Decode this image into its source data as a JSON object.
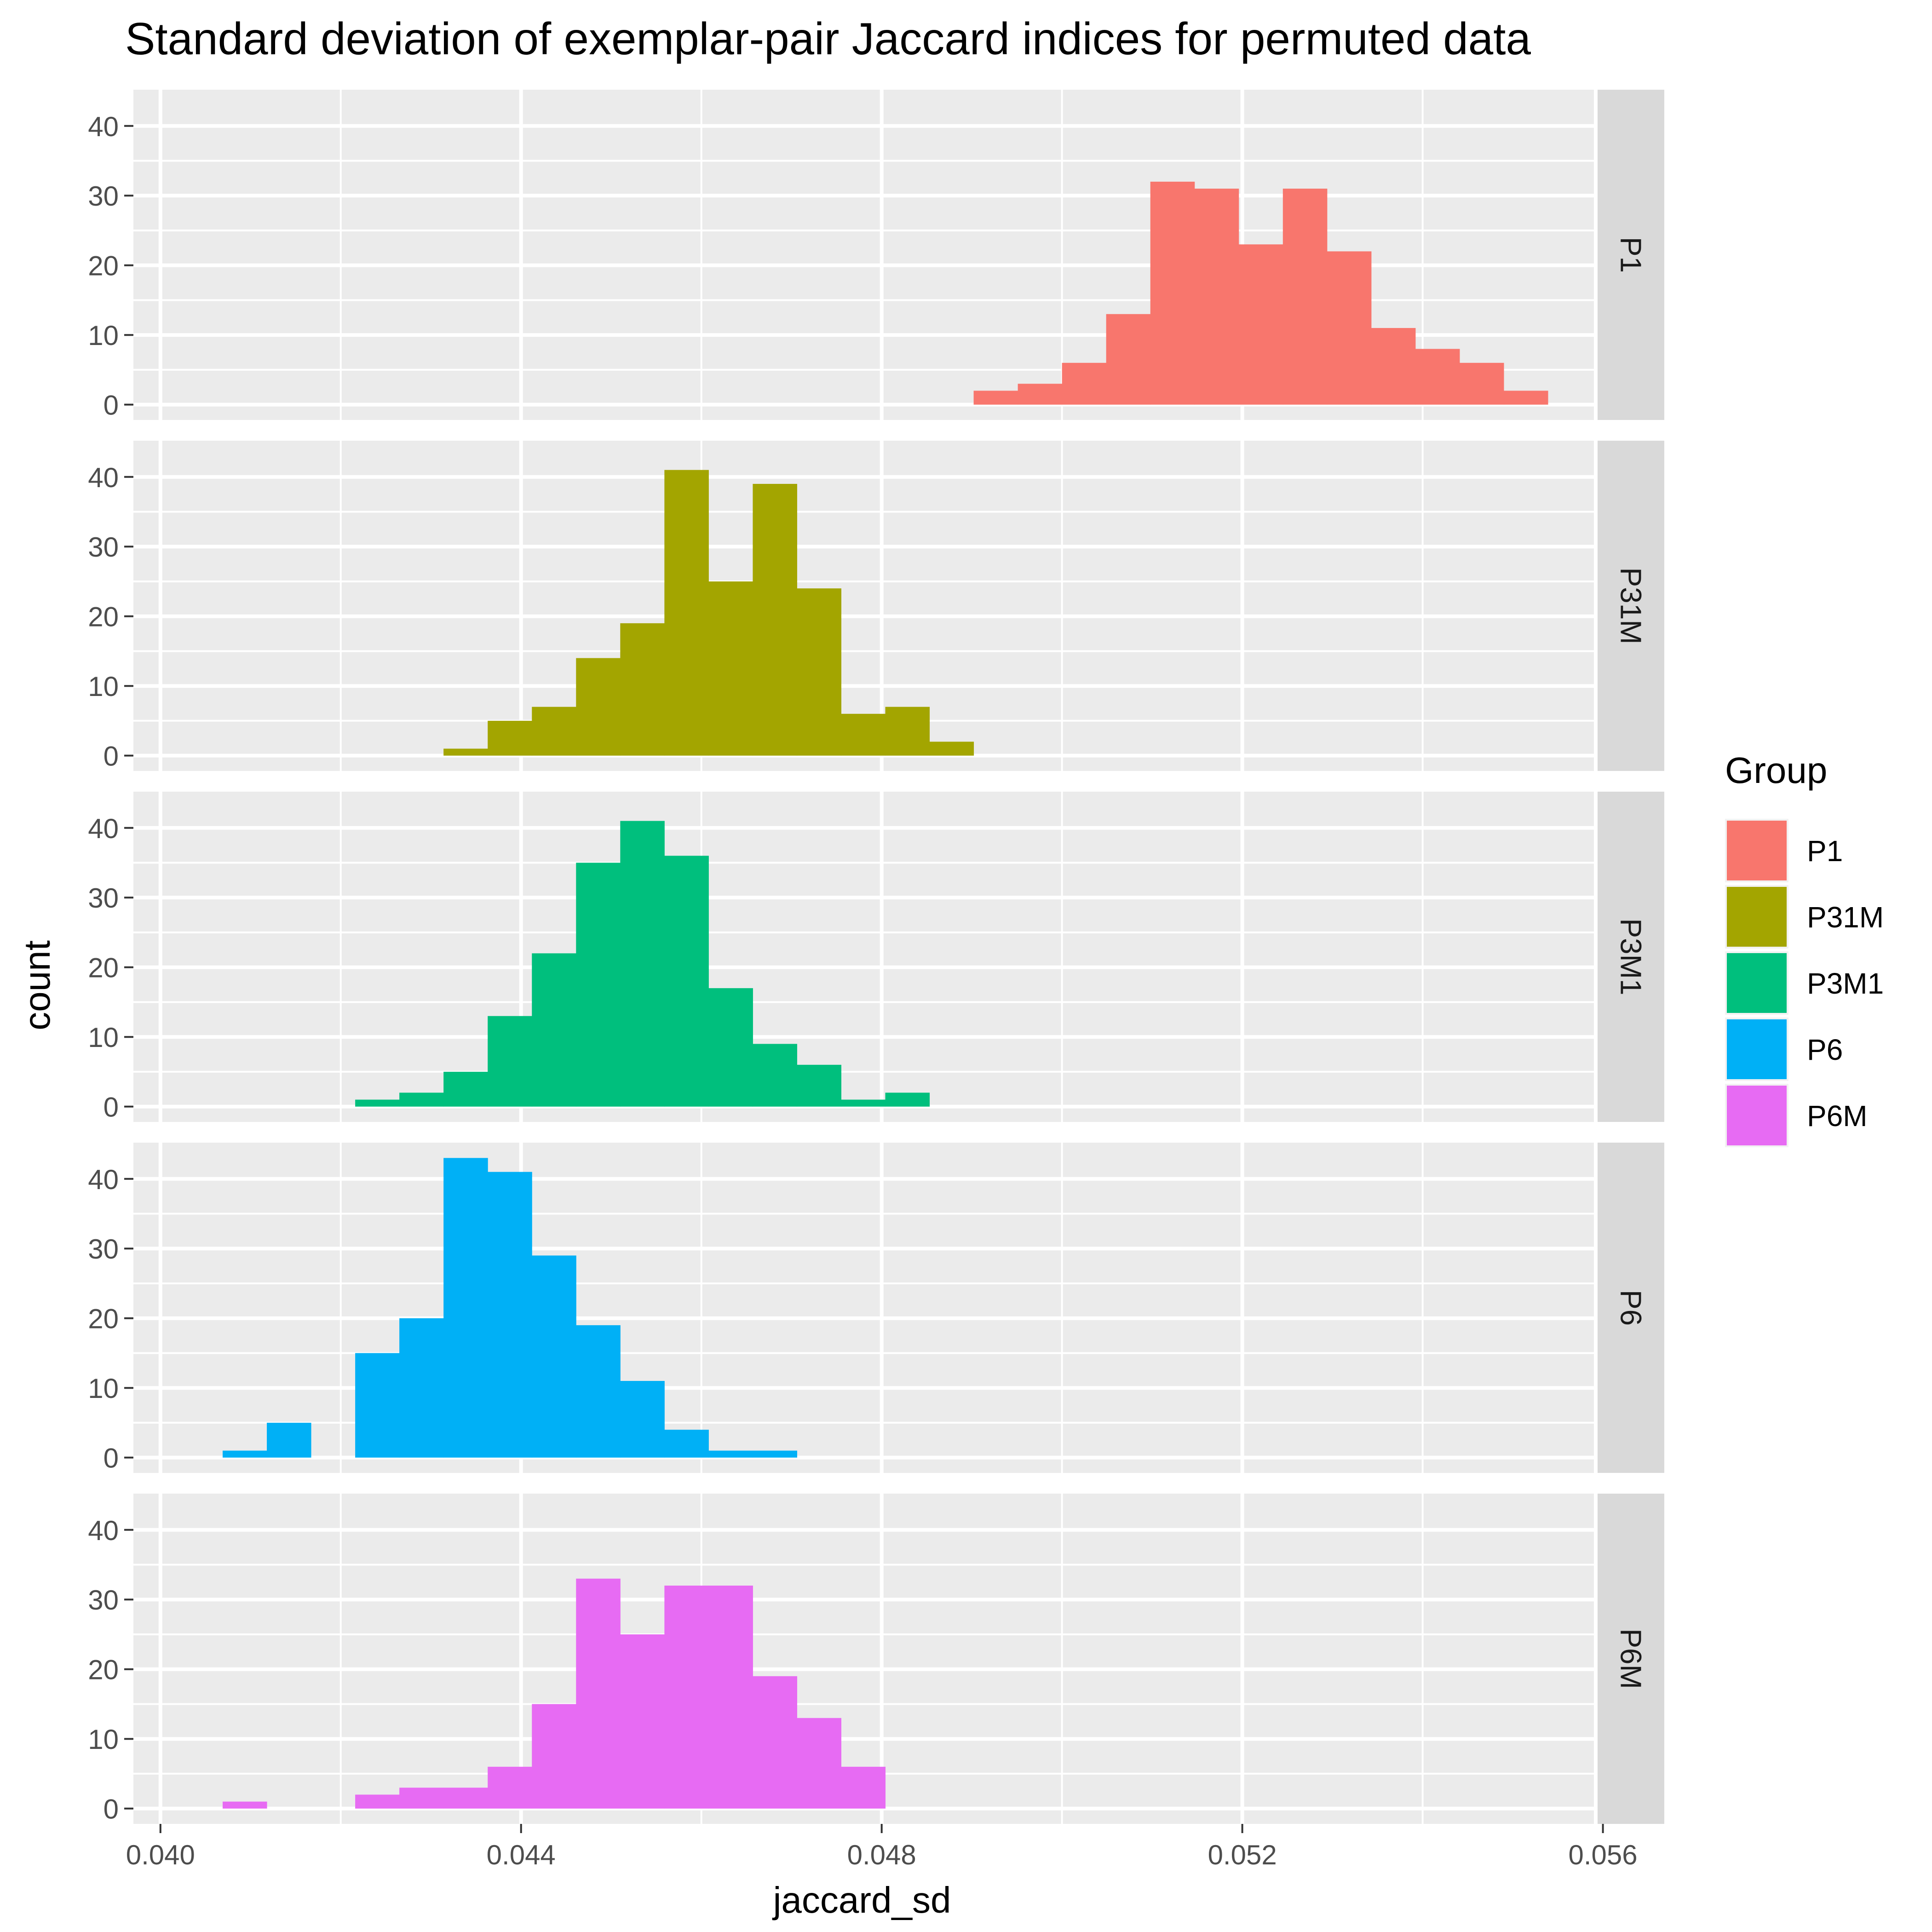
{
  "chart_data": {
    "type": "histogram",
    "title": "Standard deviation of exemplar-pair Jaccard indices for permuted data",
    "xlabel": "jaccard_sd",
    "ylabel": "count",
    "xlim": [
      0.0397,
      0.0559
    ],
    "ylim": [
      -2.2,
      45.2
    ],
    "x_ticks": [
      0.04,
      0.044,
      0.048,
      0.052,
      0.056
    ],
    "x_tick_labels": [
      "0.040",
      "0.044",
      "0.048",
      "0.052",
      "0.056"
    ],
    "y_ticks": [
      0,
      10,
      20,
      30,
      40
    ],
    "y_tick_labels": [
      "0",
      "10",
      "20",
      "30",
      "40"
    ],
    "bin_width": 0.00049,
    "bin_start": 0.04069,
    "grid": true,
    "legend": {
      "title": "Group",
      "position": "right",
      "entries": [
        "P1",
        "P31M",
        "P3M1",
        "P6",
        "P6M"
      ]
    },
    "panels": [
      {
        "name": "P1",
        "strip_label": "P1",
        "color": "#F8766D",
        "counts": [
          0,
          0,
          0,
          0,
          0,
          0,
          0,
          0,
          0,
          0,
          0,
          0,
          0,
          0,
          0,
          0,
          0,
          2,
          3,
          6,
          13,
          32,
          31,
          23,
          31,
          22,
          11,
          8,
          6,
          2
        ]
      },
      {
        "name": "P31M",
        "strip_label": "P31M",
        "color": "#A3A500",
        "counts": [
          0,
          0,
          0,
          0,
          0,
          1,
          5,
          7,
          14,
          19,
          41,
          25,
          39,
          24,
          6,
          7,
          2,
          0,
          0,
          0,
          0,
          0,
          0,
          0,
          0,
          0,
          0,
          0,
          0,
          0
        ]
      },
      {
        "name": "P3M1",
        "strip_label": "P3M1",
        "color": "#00BF7D",
        "counts": [
          0,
          0,
          0,
          1,
          2,
          5,
          13,
          22,
          35,
          41,
          36,
          17,
          9,
          6,
          1,
          2,
          0,
          0,
          0,
          0,
          0,
          0,
          0,
          0,
          0,
          0,
          0,
          0,
          0,
          0
        ]
      },
      {
        "name": "P6",
        "strip_label": "P6",
        "color": "#00B0F6",
        "counts": [
          1,
          5,
          0,
          15,
          20,
          43,
          41,
          29,
          19,
          11,
          4,
          1,
          1,
          0,
          0,
          0,
          0,
          0,
          0,
          0,
          0,
          0,
          0,
          0,
          0,
          0,
          0,
          0,
          0,
          0
        ]
      },
      {
        "name": "P6M",
        "strip_label": "P6M",
        "color": "#E76BF3",
        "counts": [
          1,
          0,
          0,
          2,
          3,
          3,
          6,
          15,
          33,
          25,
          32,
          32,
          19,
          13,
          6,
          0,
          0,
          0,
          0,
          0,
          0,
          0,
          0,
          0,
          0,
          0,
          0,
          0,
          0,
          0
        ]
      }
    ]
  }
}
